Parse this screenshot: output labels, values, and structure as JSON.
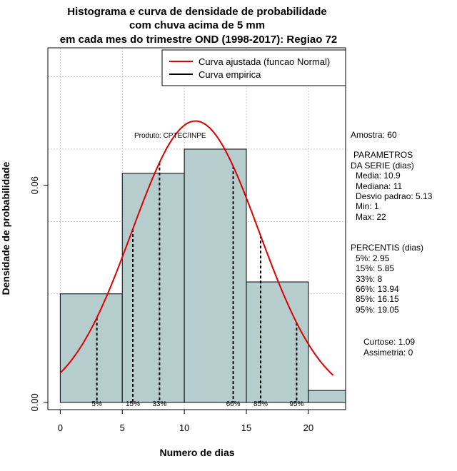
{
  "chart_data": {
    "type": "histogram",
    "title_lines": [
      "Histograma e curva de densidade de probabilidade",
      "com chuva acima de 5 mm",
      "em cada mes do trimestre OND (1998-2017): Regiao 72"
    ],
    "xlabel": "Numero de dias",
    "ylabel": "Densidade de probabilidade",
    "xlim": [
      -1,
      23
    ],
    "ylim": [
      -0.002,
      0.098
    ],
    "x_ticks": [
      0,
      5,
      10,
      15,
      20
    ],
    "x_tick_labels": [
      "0",
      "5",
      "10",
      "15",
      "20"
    ],
    "y_ticks": [
      0.0,
      0.06
    ],
    "y_tick_labels": [
      "0.00",
      "0.06"
    ],
    "grid_x": [
      0,
      5,
      10,
      15,
      20
    ],
    "grid_y": [
      0.03,
      0.05,
      0.07,
      0.09
    ],
    "bins": [
      {
        "start": 0,
        "end": 5,
        "density": 0.03
      },
      {
        "start": 5,
        "end": 10,
        "density": 0.0633
      },
      {
        "start": 10,
        "end": 15,
        "density": 0.07
      },
      {
        "start": 15,
        "end": 20,
        "density": 0.0333
      },
      {
        "start": 20,
        "end": 25,
        "density": 0.0033
      }
    ],
    "bar_color": "#b5cdcd",
    "normal_curve": {
      "mean": 10.9,
      "sd": 5.13,
      "x_range": [
        0,
        22
      ],
      "color": "#dd0000"
    },
    "percentile_lines": [
      {
        "label": "5%",
        "x": 2.95
      },
      {
        "label": "15%",
        "x": 5.85
      },
      {
        "label": "33%",
        "x": 8
      },
      {
        "label": "66%",
        "x": 13.94
      },
      {
        "label": "85%",
        "x": 16.15
      },
      {
        "label": "95%",
        "x": 19.05
      }
    ],
    "legend": [
      {
        "label": "Curva ajustada (funcao Normal)",
        "color": "#dd0000"
      },
      {
        "label": "Curva empirica",
        "color": "#000000"
      }
    ],
    "legend_position": "top-right",
    "annotation": "Produto: CPTEC/INPE"
  },
  "side_panel": {
    "amostra": "Amostra: 60",
    "params_header_1": "PARAMETROS",
    "params_header_2": "DA SERIE (dias)",
    "params": [
      "Media: 10.9",
      "Mediana: 11",
      "Desvio padrao: 5.13",
      "Min: 1",
      "Max: 22"
    ],
    "percentis_header": "PERCENTIS (dias)",
    "percentis": [
      "5%: 2.95",
      "15%: 5.85",
      "33%: 8",
      "66%: 13.94",
      "85%: 16.15",
      "95%: 19.05"
    ],
    "curtose": "Curtose: 1.09",
    "assimetria": "Assimetria: 0"
  }
}
